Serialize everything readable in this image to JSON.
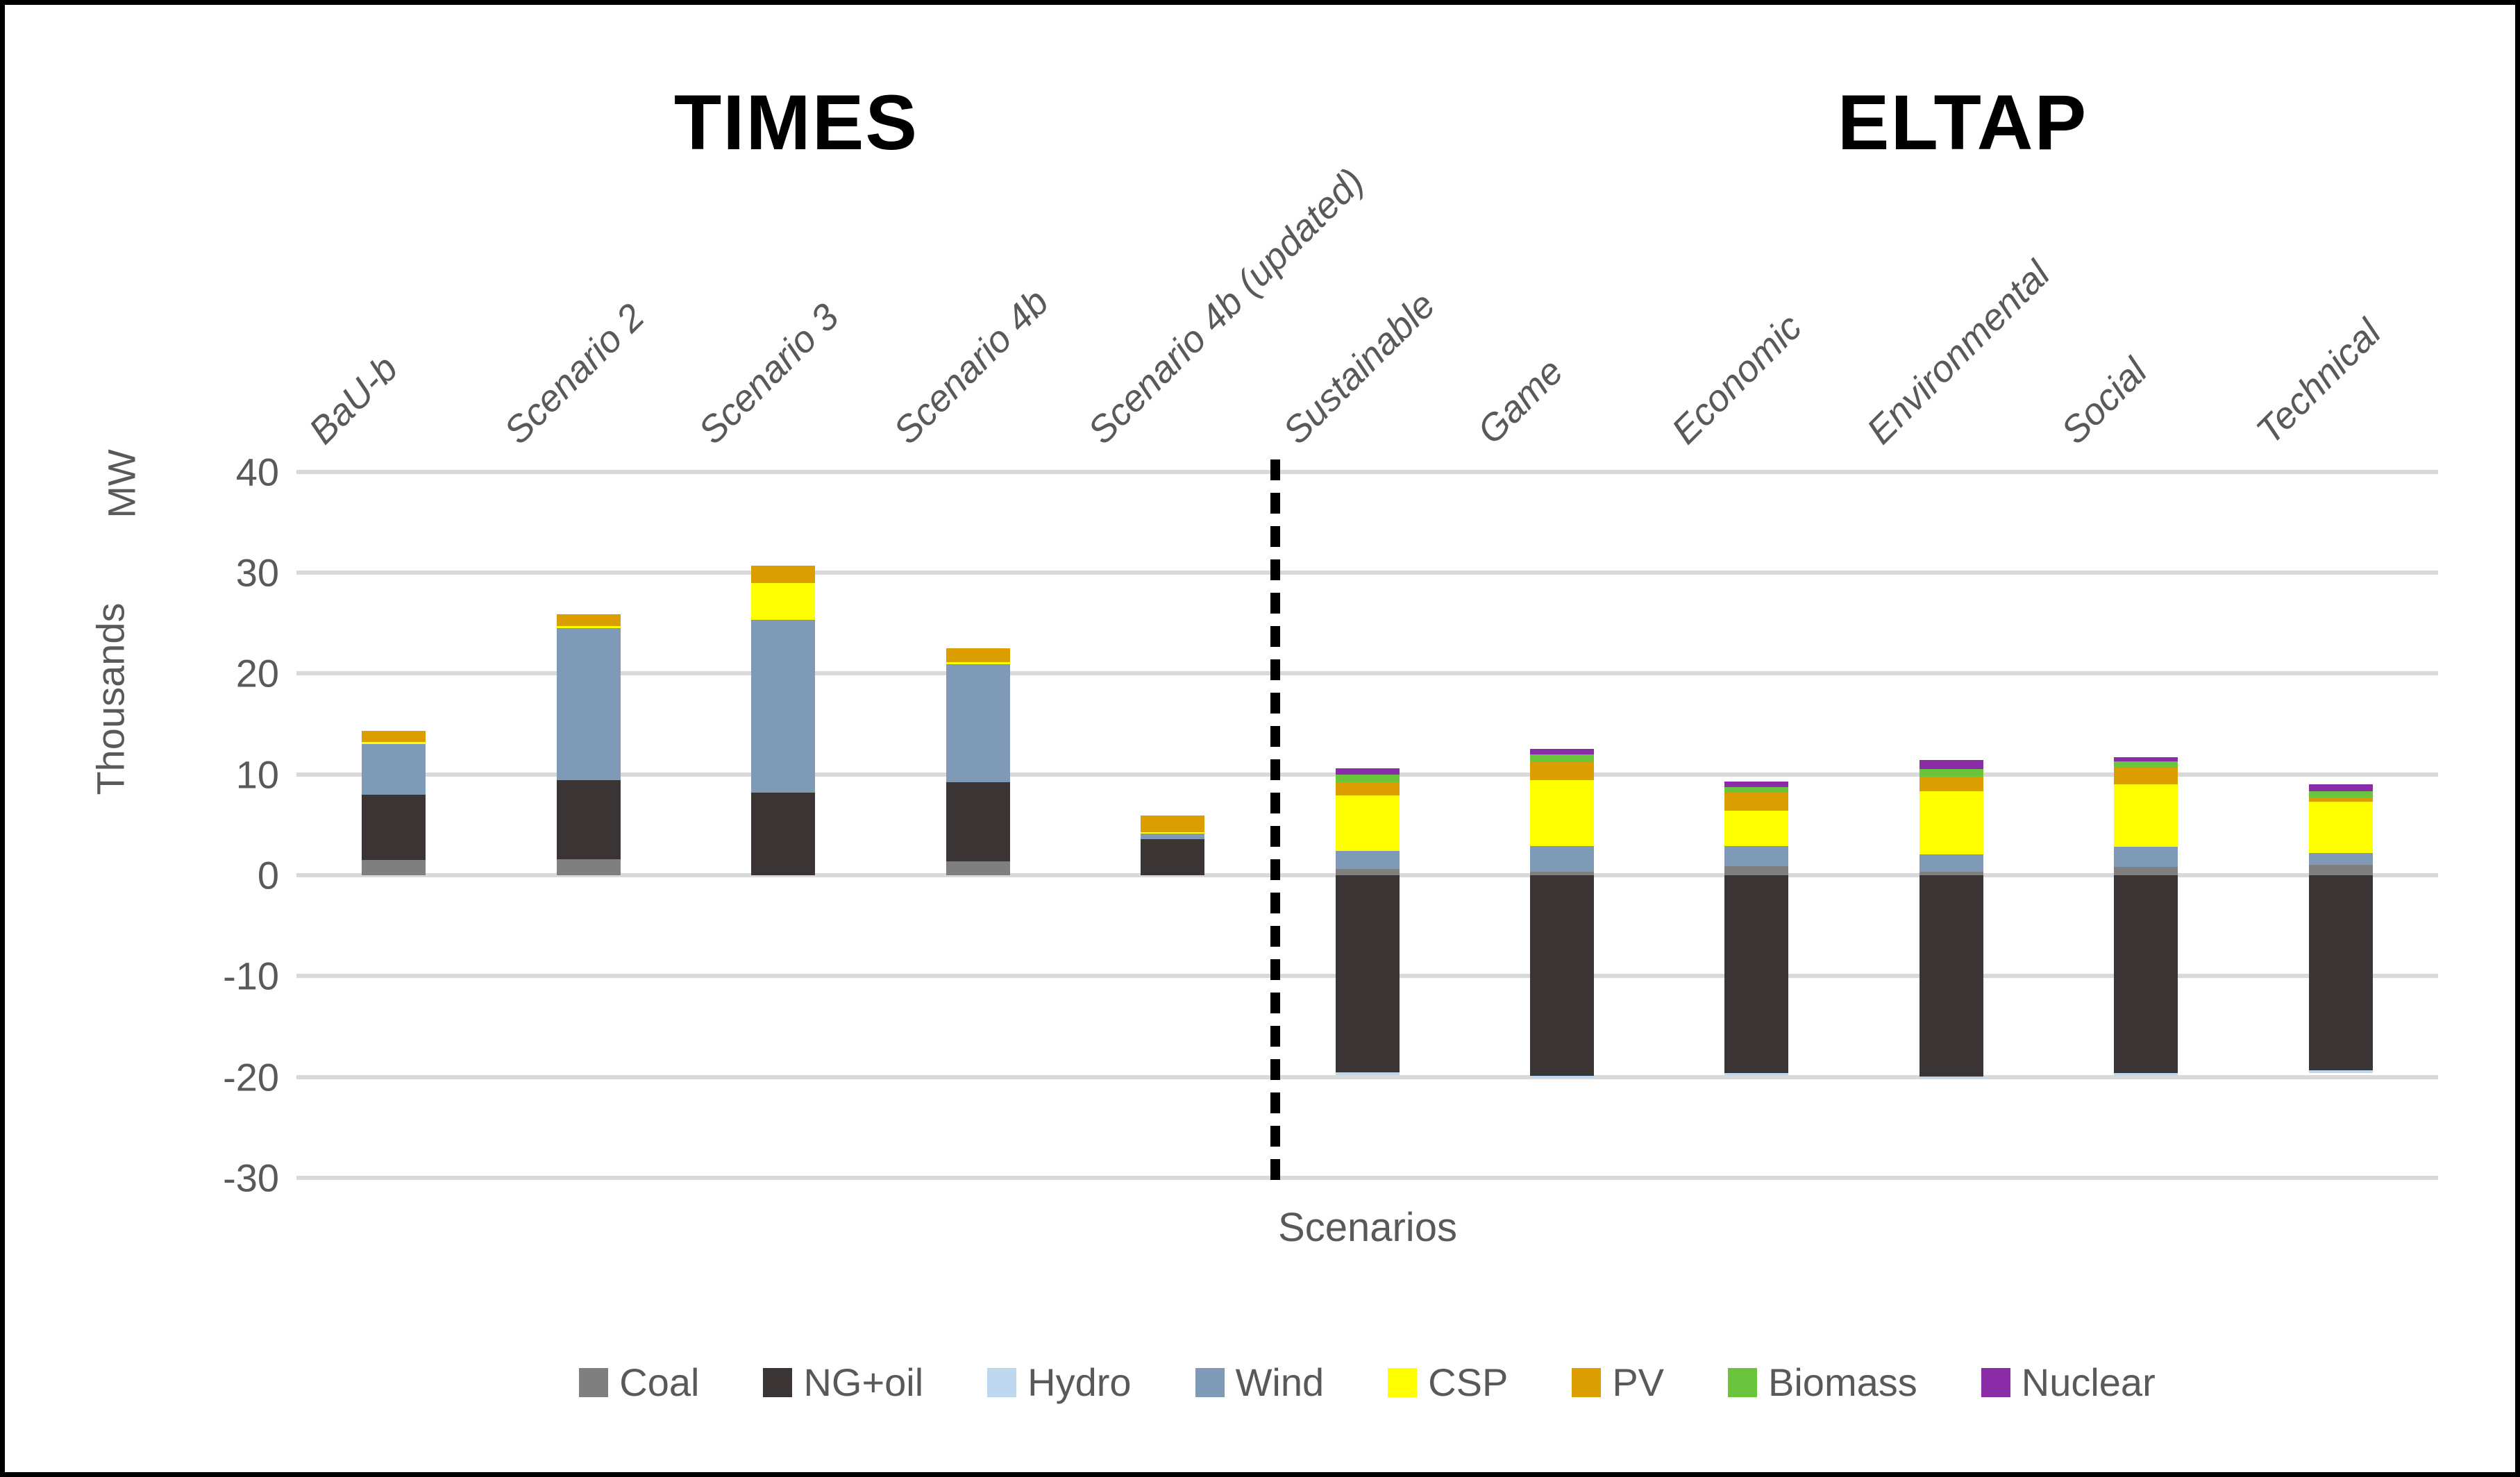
{
  "titles": {
    "times": "TIMES",
    "eltap": "ELTAP"
  },
  "axis": {
    "y_title": "MW",
    "y_units_label": "Thousands",
    "x_title": "Scenarios",
    "y_ticks": [
      40,
      30,
      20,
      10,
      0,
      -10,
      -20,
      -30
    ],
    "ylim": [
      -30,
      40
    ]
  },
  "colors": {
    "gridline": "#D9D9D9",
    "axis_text": "#595959",
    "title_text": "#000000",
    "divider": "#000000",
    "background": "#FFFFFF"
  },
  "divider": {
    "between": [
      "Scenario 4b (updated)",
      "Sustainable"
    ]
  },
  "chart_data": {
    "type": "bar",
    "stacked": true,
    "grid": "horizontal",
    "legend_position": "bottom",
    "title_left_group": "TIMES",
    "title_right_group": "ELTAP",
    "xlabel": "Scenarios",
    "ylabel": "Thousands MW",
    "ylim": [
      -30,
      40
    ],
    "categories": [
      "BaU-b",
      "Scenario 2",
      "Scenario 3",
      "Scenario 4b",
      "Scenario 4b (updated)",
      "Sustainable",
      "Game",
      "Economic",
      "Environmental",
      "Social",
      "Technical"
    ],
    "group_of_category": [
      "TIMES",
      "TIMES",
      "TIMES",
      "TIMES",
      "TIMES",
      "ELTAP",
      "ELTAP",
      "ELTAP",
      "ELTAP",
      "ELTAP",
      "ELTAP"
    ],
    "series": [
      {
        "name": "Coal",
        "color": "#7F7F7F",
        "values": [
          1.5,
          1.6,
          0,
          1.4,
          0,
          0.6,
          0.35,
          0.9,
          0.35,
          0.85,
          1.0
        ]
      },
      {
        "name": "NG+oil",
        "color": "#3A3435",
        "values": [
          6.5,
          7.8,
          8.2,
          7.8,
          3.6,
          -19.55,
          -19.9,
          -19.6,
          -19.95,
          -19.6,
          -19.35
        ]
      },
      {
        "name": "Hydro",
        "color": "#BDD7EE",
        "values": [
          0,
          0,
          0,
          0,
          0,
          -0.25,
          -0.2,
          -0.2,
          -0.2,
          -0.3,
          -0.25
        ]
      },
      {
        "name": "Wind",
        "color": "#7E9AB7",
        "values": [
          5.0,
          15.1,
          17.1,
          11.7,
          0.5,
          1.8,
          2.55,
          2.0,
          1.7,
          2.0,
          1.2
        ]
      },
      {
        "name": "CSP",
        "color": "#FFFF00",
        "values": [
          0.2,
          0.2,
          3.7,
          0.2,
          0.15,
          5.5,
          6.5,
          3.5,
          6.25,
          6.15,
          5.1
        ]
      },
      {
        "name": "PV",
        "color": "#DB9D00",
        "values": [
          1.1,
          1.2,
          1.7,
          1.4,
          1.65,
          1.3,
          1.9,
          1.8,
          1.5,
          1.7,
          0.4
        ]
      },
      {
        "name": "Biomass",
        "color": "#6AC43C",
        "values": [
          0,
          0,
          0,
          0,
          0,
          0.75,
          0.65,
          0.55,
          0.7,
          0.6,
          0.6
        ]
      },
      {
        "name": "Nuclear",
        "color": "#8A2CA8",
        "values": [
          0,
          0,
          0,
          0,
          0,
          0.65,
          0.55,
          0.55,
          0.9,
          0.4,
          0.7
        ]
      }
    ]
  }
}
